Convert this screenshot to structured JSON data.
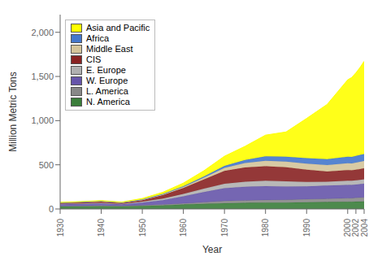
{
  "chart_data": {
    "type": "area",
    "stacked": true,
    "x": [
      1930,
      1935,
      1940,
      1945,
      1950,
      1955,
      1960,
      1965,
      1970,
      1975,
      1980,
      1985,
      1990,
      1995,
      2000,
      2001,
      2002,
      2003,
      2004
    ],
    "series": [
      {
        "name": "N. America",
        "color": "#3a7d3a",
        "values": [
          28,
          30,
          32,
          30,
          35,
          40,
          50,
          58,
          65,
          68,
          72,
          72,
          75,
          78,
          80,
          80,
          82,
          83,
          85
        ]
      },
      {
        "name": "L. America",
        "color": "#888888",
        "values": [
          5,
          5,
          6,
          5,
          7,
          10,
          13,
          18,
          25,
          28,
          30,
          32,
          35,
          38,
          42,
          43,
          44,
          45,
          46
        ]
      },
      {
        "name": "W. Europe",
        "color": "#6655aa",
        "values": [
          20,
          22,
          25,
          18,
          30,
          50,
          80,
          115,
          145,
          155,
          155,
          150,
          145,
          148,
          150,
          148,
          150,
          152,
          155
        ]
      },
      {
        "name": "E. Europe",
        "color": "#b0b0b0",
        "values": [
          5,
          6,
          7,
          5,
          10,
          18,
          28,
          38,
          50,
          58,
          62,
          58,
          50,
          45,
          48,
          48,
          49,
          50,
          50
        ]
      },
      {
        "name": "CIS",
        "color": "#882222",
        "values": [
          10,
          12,
          14,
          10,
          18,
          38,
          65,
          105,
          145,
          160,
          165,
          160,
          140,
          115,
          120,
          118,
          120,
          122,
          124
        ]
      },
      {
        "name": "Middle East",
        "color": "#d4c49a",
        "values": [
          2,
          2,
          3,
          3,
          4,
          8,
          12,
          20,
          35,
          50,
          62,
          65,
          68,
          72,
          78,
          78,
          80,
          82,
          84
        ]
      },
      {
        "name": "Africa",
        "color": "#4477cc",
        "values": [
          2,
          3,
          3,
          3,
          5,
          7,
          10,
          14,
          22,
          35,
          50,
          55,
          62,
          68,
          74,
          74,
          76,
          77,
          78
        ]
      },
      {
        "name": "Asia and Pacific",
        "color": "#ffff00",
        "values": [
          3,
          4,
          5,
          4,
          10,
          18,
          35,
          65,
          110,
          155,
          240,
          280,
          450,
          620,
          870,
          900,
          940,
          990,
          1050
        ]
      }
    ],
    "xlabel": "Year",
    "ylabel": "Million Metric Tons",
    "xlim": [
      1930,
      2004
    ],
    "xticks": [
      1930,
      1940,
      1950,
      1960,
      1970,
      1980,
      1990,
      2000,
      2002,
      2004
    ],
    "ylim": [
      0,
      2200
    ],
    "yticks": [
      0,
      500,
      {
        "value": 1000,
        "label": "1,000"
      },
      {
        "value": 1500,
        "label": "1,500"
      },
      {
        "value": 2000,
        "label": "2,000"
      }
    ],
    "legend": "upper left",
    "grid": false
  }
}
